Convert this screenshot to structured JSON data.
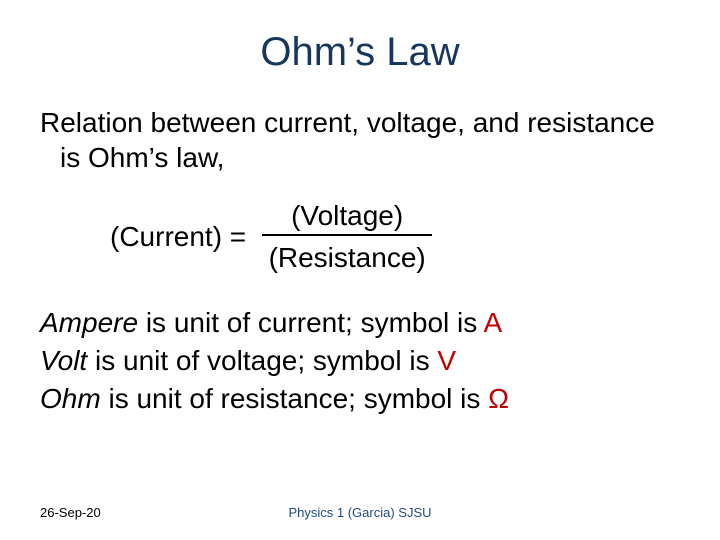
{
  "colors": {
    "title": "#17365d",
    "body": "#000000",
    "accent": "#c00000",
    "footer_center": "#1f497d",
    "background": "#ffffff"
  },
  "typography": {
    "title_fontsize_pt": 30,
    "body_fontsize_pt": 21,
    "footer_fontsize_pt": 10,
    "font_family": "Arial"
  },
  "title": "Ohm’s Law",
  "intro": "Relation between current, voltage, and resistance is Ohm’s law,",
  "equation": {
    "lhs": "(Current) =",
    "numerator": "(Voltage)",
    "denominator": "(Resistance)"
  },
  "units": [
    {
      "term": "Ampere",
      "mid": " is unit of current; symbol is ",
      "symbol": "A"
    },
    {
      "term": "Volt",
      "mid": " is unit of voltage; symbol is ",
      "symbol": "V"
    },
    {
      "term": "Ohm",
      "mid": " is unit of resistance; symbol is ",
      "symbol": "Ω"
    }
  ],
  "footer": {
    "date": "26-Sep-20",
    "center": "Physics 1 (Garcia) SJSU"
  }
}
